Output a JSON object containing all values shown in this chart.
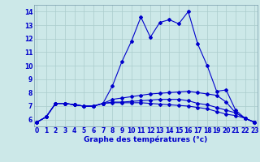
{
  "xlabel": "Graphe des températures (°c)",
  "background_color": "#cce8e8",
  "grid_color": "#aacccc",
  "line_color": "#0000cc",
  "x_hours": [
    0,
    1,
    2,
    3,
    4,
    5,
    6,
    7,
    8,
    9,
    10,
    11,
    12,
    13,
    14,
    15,
    16,
    17,
    18,
    19,
    20,
    21,
    22,
    23
  ],
  "ylim": [
    5.5,
    14.5
  ],
  "xlim": [
    -0.3,
    23.3
  ],
  "yticks": [
    6,
    7,
    8,
    9,
    10,
    11,
    12,
    13,
    14
  ],
  "series": [
    [
      5.8,
      6.2,
      7.2,
      7.2,
      7.1,
      7.0,
      7.0,
      7.2,
      8.5,
      10.3,
      11.8,
      13.6,
      12.1,
      13.2,
      13.4,
      13.1,
      14.0,
      11.6,
      10.0,
      8.1,
      8.2,
      6.7,
      6.1,
      5.8
    ],
    [
      5.8,
      6.2,
      7.2,
      7.2,
      7.1,
      7.0,
      7.0,
      7.2,
      7.5,
      7.6,
      7.7,
      7.8,
      7.9,
      7.95,
      8.0,
      8.05,
      8.1,
      8.0,
      7.9,
      7.8,
      7.3,
      6.5,
      6.1,
      5.8
    ],
    [
      5.8,
      6.2,
      7.2,
      7.2,
      7.1,
      7.0,
      7.0,
      7.2,
      7.3,
      7.3,
      7.35,
      7.4,
      7.45,
      7.5,
      7.5,
      7.5,
      7.4,
      7.2,
      7.1,
      6.9,
      6.7,
      6.5,
      6.1,
      5.8
    ],
    [
      5.8,
      6.2,
      7.2,
      7.2,
      7.1,
      7.0,
      7.0,
      7.2,
      7.25,
      7.25,
      7.25,
      7.25,
      7.2,
      7.15,
      7.1,
      7.05,
      7.0,
      6.9,
      6.8,
      6.6,
      6.4,
      6.3,
      6.1,
      5.8
    ]
  ],
  "xlabel_fontsize": 6.5,
  "tick_fontsize": 5.5
}
